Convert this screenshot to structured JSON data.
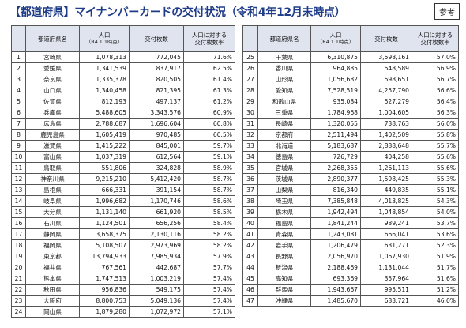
{
  "header": {
    "title": "【都道府県】マイナンバーカードの交付状況（令和4年12月末時点）",
    "badge": "参考"
  },
  "columns": {
    "name": "都道府県名",
    "population": "人口",
    "population_note": "（R4.1.1時点）",
    "issued": "交付枚数",
    "rate": [
      "人口に対する",
      "交付枚数率"
    ]
  },
  "tables": [
    {
      "rows": [
        [
          "1",
          "宮崎県",
          "1,078,313",
          "772,045",
          "71.6%"
        ],
        [
          "2",
          "愛媛県",
          "1,341,539",
          "837,917",
          "62.5%"
        ],
        [
          "3",
          "奈良県",
          "1,335,378",
          "820,505",
          "61.4%"
        ],
        [
          "4",
          "山口県",
          "1,340,458",
          "821,395",
          "61.3%"
        ],
        [
          "5",
          "佐賀県",
          "812,193",
          "497,137",
          "61.2%"
        ],
        [
          "6",
          "兵庫県",
          "5,488,605",
          "3,343,576",
          "60.9%"
        ],
        [
          "7",
          "広島県",
          "2,788,687",
          "1,696,604",
          "60.8%"
        ],
        [
          "8",
          "鹿児島県",
          "1,605,419",
          "970,485",
          "60.5%"
        ],
        [
          "9",
          "滋賀県",
          "1,415,222",
          "845,001",
          "59.7%"
        ],
        [
          "10",
          "富山県",
          "1,037,319",
          "612,564",
          "59.1%"
        ],
        [
          "11",
          "鳥取県",
          "551,806",
          "324,828",
          "58.9%"
        ],
        [
          "12",
          "神奈川県",
          "9,215,210",
          "5,412,420",
          "58.7%"
        ],
        [
          "13",
          "島根県",
          "666,331",
          "391,154",
          "58.7%"
        ],
        [
          "14",
          "岐阜県",
          "1,996,682",
          "1,170,746",
          "58.6%"
        ],
        [
          "15",
          "大分県",
          "1,131,140",
          "661,920",
          "58.5%"
        ],
        [
          "16",
          "石川県",
          "1,124,501",
          "656,256",
          "58.4%"
        ],
        [
          "17",
          "静岡県",
          "3,658,375",
          "2,130,116",
          "58.2%"
        ],
        [
          "18",
          "福岡県",
          "5,108,507",
          "2,973,969",
          "58.2%"
        ],
        [
          "19",
          "東京都",
          "13,794,933",
          "7,985,934",
          "57.9%"
        ],
        [
          "20",
          "福井県",
          "767,561",
          "442,687",
          "57.7%"
        ],
        [
          "21",
          "熊本県",
          "1,747,513",
          "1,003,219",
          "57.4%"
        ],
        [
          "22",
          "秋田県",
          "956,836",
          "549,175",
          "57.4%"
        ],
        [
          "23",
          "大阪府",
          "8,800,753",
          "5,049,136",
          "57.4%"
        ],
        [
          "24",
          "岡山県",
          "1,879,280",
          "1,072,972",
          "57.1%"
        ]
      ]
    },
    {
      "rows": [
        [
          "25",
          "千葉県",
          "6,310,875",
          "3,598,161",
          "57.0%"
        ],
        [
          "26",
          "香川県",
          "964,885",
          "548,589",
          "56.9%"
        ],
        [
          "27",
          "山形県",
          "1,056,682",
          "598,651",
          "56.7%"
        ],
        [
          "28",
          "愛知県",
          "7,528,519",
          "4,257,790",
          "56.6%"
        ],
        [
          "29",
          "和歌山県",
          "935,084",
          "527,279",
          "56.4%"
        ],
        [
          "30",
          "三重県",
          "1,784,968",
          "1,004,605",
          "56.3%"
        ],
        [
          "31",
          "長崎県",
          "1,320,055",
          "738,763",
          "56.0%"
        ],
        [
          "32",
          "京都府",
          "2,511,494",
          "1,402,509",
          "55.8%"
        ],
        [
          "33",
          "北海道",
          "5,183,687",
          "2,888,648",
          "55.7%"
        ],
        [
          "34",
          "徳島県",
          "726,729",
          "404,258",
          "55.6%"
        ],
        [
          "35",
          "宮城県",
          "2,268,355",
          "1,261,113",
          "55.6%"
        ],
        [
          "36",
          "茨城県",
          "2,890,377",
          "1,598,425",
          "55.3%"
        ],
        [
          "37",
          "山梨県",
          "816,340",
          "449,835",
          "55.1%"
        ],
        [
          "38",
          "埼玉県",
          "7,385,848",
          "4,013,825",
          "54.3%"
        ],
        [
          "39",
          "栃木県",
          "1,942,494",
          "1,048,854",
          "54.0%"
        ],
        [
          "40",
          "福島県",
          "1,841,244",
          "989,241",
          "53.7%"
        ],
        [
          "41",
          "青森県",
          "1,243,081",
          "666,041",
          "53.6%"
        ],
        [
          "42",
          "岩手県",
          "1,206,479",
          "631,271",
          "52.3%"
        ],
        [
          "43",
          "長野県",
          "2,056,970",
          "1,067,930",
          "51.9%"
        ],
        [
          "44",
          "新潟県",
          "2,188,469",
          "1,131,044",
          "51.7%"
        ],
        [
          "45",
          "高知県",
          "693,369",
          "357,964",
          "51.6%"
        ],
        [
          "46",
          "群馬県",
          "1,943,667",
          "995,511",
          "51.2%"
        ],
        [
          "47",
          "沖縄県",
          "1,485,670",
          "683,721",
          "46.0%"
        ]
      ]
    }
  ]
}
